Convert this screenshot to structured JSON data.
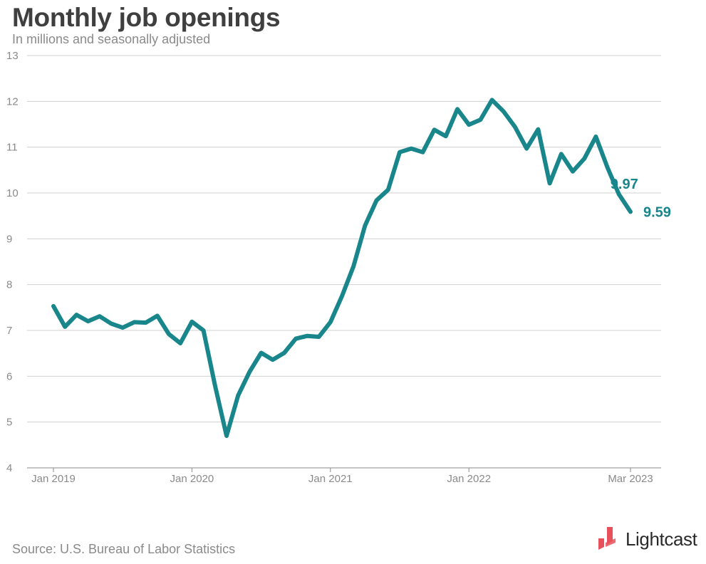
{
  "header": {
    "title": "Monthly job openings",
    "subtitle": "In millions and seasonally adjusted"
  },
  "footer": {
    "source": "Source: U.S. Bureau of Labor Statistics",
    "brand": "Lightcast"
  },
  "colors": {
    "line": "#19868c",
    "grid": "#d0d0d0",
    "axis": "#8a8a8a",
    "title": "#3f3f3f",
    "logo_mark": "#e8505b"
  },
  "chart_data": {
    "type": "line",
    "title": "Monthly job openings",
    "subtitle": "In millions and seasonally adjusted",
    "xlabel": "",
    "ylabel": "",
    "ylim": [
      4,
      13
    ],
    "yticks": [
      "4",
      "5",
      "6",
      "7",
      "8",
      "9",
      "10",
      "11",
      "12",
      "13"
    ],
    "xticks": [
      {
        "label": "Jan 2019",
        "date": "2019-01"
      },
      {
        "label": "Jan 2020",
        "date": "2020-01"
      },
      {
        "label": "Jan 2021",
        "date": "2021-01"
      },
      {
        "label": "Jan 2022",
        "date": "2022-01"
      },
      {
        "label": "Mar 2023",
        "date": "2023-03"
      }
    ],
    "grid": true,
    "legend": "none",
    "series": [
      {
        "x": [
          "2019-01",
          "2019-02",
          "2019-03",
          "2019-04",
          "2019-05",
          "2019-06",
          "2019-07",
          "2019-08",
          "2019-09",
          "2019-10",
          "2019-11",
          "2019-12",
          "2020-01",
          "2020-02",
          "2020-03",
          "2020-04",
          "2020-05",
          "2020-06",
          "2020-07",
          "2020-08",
          "2020-09",
          "2020-10",
          "2020-11",
          "2020-12",
          "2021-01",
          "2021-02",
          "2021-03",
          "2021-04",
          "2021-05",
          "2021-06",
          "2021-07",
          "2021-08",
          "2021-09",
          "2021-10",
          "2021-11",
          "2021-12",
          "2022-01",
          "2022-02",
          "2022-03",
          "2022-04",
          "2022-05",
          "2022-06",
          "2022-07",
          "2022-08",
          "2022-09",
          "2022-10",
          "2022-11",
          "2022-12",
          "2023-01",
          "2023-02",
          "2023-03"
        ],
        "values": [
          7.53,
          7.08,
          7.34,
          7.2,
          7.31,
          7.15,
          7.06,
          7.18,
          7.17,
          7.32,
          6.92,
          6.72,
          7.19,
          7.0,
          5.8,
          4.7,
          5.58,
          6.1,
          6.51,
          6.36,
          6.51,
          6.82,
          6.88,
          6.86,
          7.18,
          7.75,
          8.4,
          9.29,
          9.84,
          10.07,
          10.89,
          10.97,
          10.89,
          11.38,
          11.24,
          11.83,
          11.49,
          11.6,
          12.03,
          11.78,
          11.44,
          10.97,
          11.39,
          10.21,
          10.85,
          10.47,
          10.75,
          11.23,
          10.56,
          9.97,
          9.59
        ]
      }
    ],
    "annotations": [
      {
        "text": "9.97",
        "date": "2023-02",
        "value": 9.97
      },
      {
        "text": "9.59",
        "date": "2023-03",
        "value": 9.59
      }
    ]
  }
}
